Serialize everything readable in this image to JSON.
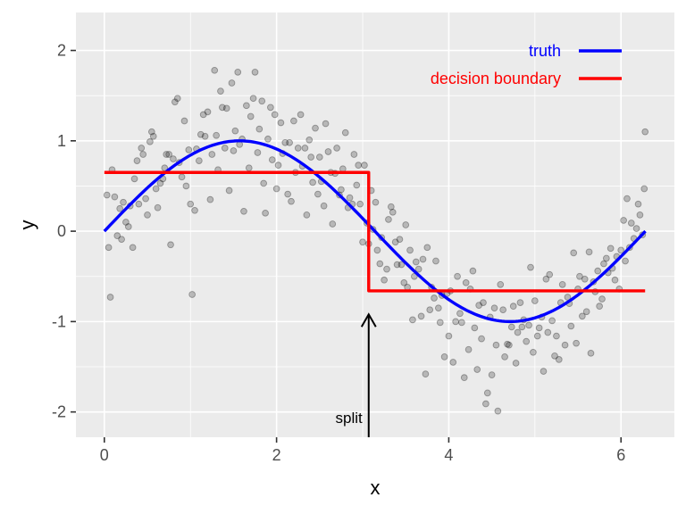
{
  "chart_data": {
    "type": "scatter",
    "xlabel": "x",
    "ylabel": "y",
    "xlim": [
      -0.33,
      6.62
    ],
    "ylim": [
      -2.28,
      2.42
    ],
    "x_ticks": [
      0,
      2,
      4,
      6
    ],
    "y_ticks": [
      -2,
      -1,
      0,
      1,
      2
    ],
    "x_tick_labels": [
      "0",
      "2",
      "4",
      "6"
    ],
    "y_tick_labels": [
      "-2",
      "-1",
      "0",
      "1",
      "2"
    ],
    "grid": true,
    "legend_position": "top-right",
    "legend": [
      {
        "label": "truth",
        "color": "#0000ff"
      },
      {
        "label": "decision boundary",
        "color": "#ff0000"
      }
    ],
    "series": [
      {
        "name": "truth",
        "type": "line",
        "color": "#0000ff",
        "function": "sin(x)",
        "domain": [
          0,
          6.2832
        ]
      },
      {
        "name": "decision boundary",
        "type": "step",
        "color": "#ff0000",
        "x": [
          0,
          3.07,
          3.07,
          6.28
        ],
        "y": [
          0.65,
          0.65,
          -0.66,
          -0.66
        ]
      }
    ],
    "points": [
      [
        0.03,
        0.4
      ],
      [
        0.05,
        -0.18
      ],
      [
        0.07,
        -0.73
      ],
      [
        0.09,
        0.68
      ],
      [
        0.12,
        0.38
      ],
      [
        0.15,
        -0.05
      ],
      [
        0.18,
        0.25
      ],
      [
        0.2,
        -0.09
      ],
      [
        0.22,
        0.32
      ],
      [
        0.25,
        0.1
      ],
      [
        0.28,
        0.05
      ],
      [
        0.3,
        0.28
      ],
      [
        0.33,
        -0.18
      ],
      [
        0.35,
        0.58
      ],
      [
        0.38,
        0.78
      ],
      [
        0.4,
        0.3
      ],
      [
        0.43,
        0.92
      ],
      [
        0.45,
        0.85
      ],
      [
        0.48,
        0.36
      ],
      [
        0.5,
        0.18
      ],
      [
        0.53,
        0.99
      ],
      [
        0.55,
        1.1
      ],
      [
        0.57,
        1.05
      ],
      [
        0.6,
        0.47
      ],
      [
        0.62,
        0.26
      ],
      [
        0.65,
        0.53
      ],
      [
        0.68,
        0.58
      ],
      [
        0.7,
        0.7
      ],
      [
        0.72,
        0.85
      ],
      [
        0.75,
        0.85
      ],
      [
        0.77,
        -0.15
      ],
      [
        0.8,
        0.8
      ],
      [
        0.82,
        1.43
      ],
      [
        0.85,
        1.47
      ],
      [
        0.87,
        0.76
      ],
      [
        0.9,
        0.6
      ],
      [
        0.93,
        1.22
      ],
      [
        0.95,
        0.5
      ],
      [
        0.98,
        0.9
      ],
      [
        1.0,
        0.3
      ],
      [
        1.02,
        -0.7
      ],
      [
        1.05,
        0.23
      ],
      [
        1.07,
        0.91
      ],
      [
        1.1,
        0.78
      ],
      [
        1.12,
        1.07
      ],
      [
        1.15,
        1.29
      ],
      [
        1.17,
        1.05
      ],
      [
        1.2,
        1.32
      ],
      [
        1.23,
        0.35
      ],
      [
        1.25,
        0.85
      ],
      [
        1.28,
        1.78
      ],
      [
        1.3,
        1.06
      ],
      [
        1.32,
        0.68
      ],
      [
        1.35,
        1.55
      ],
      [
        1.37,
        1.37
      ],
      [
        1.4,
        0.92
      ],
      [
        1.42,
        1.36
      ],
      [
        1.45,
        0.45
      ],
      [
        1.48,
        1.64
      ],
      [
        1.5,
        0.89
      ],
      [
        1.52,
        1.11
      ],
      [
        1.55,
        1.76
      ],
      [
        1.57,
        0.96
      ],
      [
        1.6,
        1.02
      ],
      [
        1.62,
        0.22
      ],
      [
        1.65,
        1.39
      ],
      [
        1.68,
        0.7
      ],
      [
        1.7,
        1.27
      ],
      [
        1.73,
        1.47
      ],
      [
        1.75,
        1.76
      ],
      [
        1.78,
        0.87
      ],
      [
        1.8,
        1.13
      ],
      [
        1.83,
        1.44
      ],
      [
        1.85,
        0.53
      ],
      [
        1.87,
        0.2
      ],
      [
        1.9,
        1.02
      ],
      [
        1.93,
        1.37
      ],
      [
        1.95,
        0.79
      ],
      [
        1.98,
        1.29
      ],
      [
        2.0,
        0.47
      ],
      [
        2.02,
        0.73
      ],
      [
        2.05,
        1.2
      ],
      [
        2.07,
        0.86
      ],
      [
        2.1,
        0.98
      ],
      [
        2.13,
        0.41
      ],
      [
        2.15,
        0.98
      ],
      [
        2.17,
        0.33
      ],
      [
        2.2,
        1.22
      ],
      [
        2.22,
        0.65
      ],
      [
        2.25,
        0.92
      ],
      [
        2.28,
        1.29
      ],
      [
        2.3,
        0.72
      ],
      [
        2.33,
        0.92
      ],
      [
        2.35,
        0.18
      ],
      [
        2.38,
        1.01
      ],
      [
        2.4,
        0.82
      ],
      [
        2.42,
        0.54
      ],
      [
        2.45,
        1.14
      ],
      [
        2.48,
        0.41
      ],
      [
        2.5,
        0.82
      ],
      [
        2.52,
        0.55
      ],
      [
        2.55,
        0.28
      ],
      [
        2.57,
        1.19
      ],
      [
        2.6,
        0.88
      ],
      [
        2.63,
        0.65
      ],
      [
        2.65,
        0.08
      ],
      [
        2.68,
        0.64
      ],
      [
        2.7,
        0.92
      ],
      [
        2.73,
        0.4
      ],
      [
        2.75,
        0.46
      ],
      [
        2.77,
        0.69
      ],
      [
        2.8,
        1.09
      ],
      [
        2.83,
        0.26
      ],
      [
        2.85,
        0.37
      ],
      [
        2.88,
        0.3
      ],
      [
        2.9,
        0.85
      ],
      [
        2.93,
        0.51
      ],
      [
        2.95,
        0.73
      ],
      [
        2.97,
        0.3
      ],
      [
        3.0,
        -0.12
      ],
      [
        3.02,
        0.73
      ],
      [
        3.05,
        0.09
      ],
      [
        3.07,
        -0.14
      ],
      [
        3.1,
        0.45
      ],
      [
        3.12,
        0.02
      ],
      [
        3.15,
        0.32
      ],
      [
        3.17,
        -0.21
      ],
      [
        3.2,
        -0.36
      ],
      [
        3.22,
        -0.07
      ],
      [
        3.25,
        -0.54
      ],
      [
        3.28,
        -0.42
      ],
      [
        3.3,
        0.13
      ],
      [
        3.33,
        0.27
      ],
      [
        3.35,
        0.21
      ],
      [
        3.38,
        -0.12
      ],
      [
        3.4,
        -0.37
      ],
      [
        3.43,
        -0.09
      ],
      [
        3.45,
        -0.37
      ],
      [
        3.48,
        -0.57
      ],
      [
        3.5,
        0.07
      ],
      [
        3.52,
        -0.62
      ],
      [
        3.55,
        -0.21
      ],
      [
        3.58,
        -0.98
      ],
      [
        3.6,
        -0.5
      ],
      [
        3.62,
        -0.34
      ],
      [
        3.65,
        -0.42
      ],
      [
        3.68,
        -0.94
      ],
      [
        3.7,
        -0.31
      ],
      [
        3.73,
        -1.58
      ],
      [
        3.75,
        -0.18
      ],
      [
        3.78,
        -0.87
      ],
      [
        3.8,
        -0.62
      ],
      [
        3.83,
        -0.74
      ],
      [
        3.85,
        -0.33
      ],
      [
        3.88,
        -0.85
      ],
      [
        3.9,
        -1.01
      ],
      [
        3.92,
        -0.71
      ],
      [
        3.95,
        -1.39
      ],
      [
        3.98,
        -0.69
      ],
      [
        4.0,
        -1.16
      ],
      [
        4.02,
        -0.66
      ],
      [
        4.05,
        -1.45
      ],
      [
        4.08,
        -1.0
      ],
      [
        4.1,
        -0.5
      ],
      [
        4.13,
        -0.91
      ],
      [
        4.15,
        -1.01
      ],
      [
        4.18,
        -1.62
      ],
      [
        4.2,
        -0.57
      ],
      [
        4.23,
        -1.31
      ],
      [
        4.25,
        -0.64
      ],
      [
        4.28,
        -0.44
      ],
      [
        4.3,
        -1.07
      ],
      [
        4.33,
        -1.53
      ],
      [
        4.35,
        -0.82
      ],
      [
        4.38,
        -1.19
      ],
      [
        4.4,
        -0.79
      ],
      [
        4.43,
        -1.91
      ],
      [
        4.45,
        -1.79
      ],
      [
        4.48,
        -0.95
      ],
      [
        4.5,
        -1.59
      ],
      [
        4.53,
        -0.85
      ],
      [
        4.55,
        -1.26
      ],
      [
        4.57,
        -1.99
      ],
      [
        4.6,
        -0.59
      ],
      [
        4.63,
        -0.87
      ],
      [
        4.65,
        -1.39
      ],
      [
        4.68,
        -1.25
      ],
      [
        4.7,
        -1.26
      ],
      [
        4.73,
        -1.06
      ],
      [
        4.75,
        -0.83
      ],
      [
        4.78,
        -1.46
      ],
      [
        4.8,
        -1.12
      ],
      [
        4.83,
        -0.79
      ],
      [
        4.85,
        -1.06
      ],
      [
        4.87,
        -0.98
      ],
      [
        4.9,
        -1.22
      ],
      [
        4.93,
        -1.04
      ],
      [
        4.95,
        -0.4
      ],
      [
        4.98,
        -1.34
      ],
      [
        5.0,
        -0.77
      ],
      [
        5.03,
        -1.16
      ],
      [
        5.05,
        -1.07
      ],
      [
        5.08,
        -0.95
      ],
      [
        5.1,
        -1.55
      ],
      [
        5.13,
        -0.53
      ],
      [
        5.15,
        -1.12
      ],
      [
        5.17,
        -0.48
      ],
      [
        5.2,
        -0.99
      ],
      [
        5.23,
        -1.38
      ],
      [
        5.25,
        -1.16
      ],
      [
        5.28,
        -1.42
      ],
      [
        5.3,
        -0.79
      ],
      [
        5.32,
        -0.59
      ],
      [
        5.35,
        -1.26
      ],
      [
        5.38,
        -0.73
      ],
      [
        5.4,
        -0.8
      ],
      [
        5.42,
        -1.05
      ],
      [
        5.45,
        -0.24
      ],
      [
        5.48,
        -1.24
      ],
      [
        5.5,
        -0.64
      ],
      [
        5.52,
        -0.5
      ],
      [
        5.55,
        -0.94
      ],
      [
        5.58,
        -0.53
      ],
      [
        5.6,
        -0.89
      ],
      [
        5.63,
        -0.23
      ],
      [
        5.65,
        -1.35
      ],
      [
        5.68,
        -0.56
      ],
      [
        5.7,
        -0.67
      ],
      [
        5.73,
        -0.44
      ],
      [
        5.75,
        -0.83
      ],
      [
        5.78,
        -0.75
      ],
      [
        5.8,
        -0.36
      ],
      [
        5.83,
        -0.3
      ],
      [
        5.85,
        -0.46
      ],
      [
        5.88,
        -0.19
      ],
      [
        5.9,
        -0.41
      ],
      [
        5.93,
        -0.54
      ],
      [
        5.95,
        -0.28
      ],
      [
        5.98,
        -0.64
      ],
      [
        6.0,
        -0.21
      ],
      [
        6.03,
        0.12
      ],
      [
        6.05,
        -0.33
      ],
      [
        6.07,
        0.36
      ],
      [
        6.1,
        -0.18
      ],
      [
        6.12,
        0.09
      ],
      [
        6.15,
        -0.08
      ],
      [
        6.18,
        0.03
      ],
      [
        6.2,
        0.3
      ],
      [
        6.22,
        0.18
      ],
      [
        6.25,
        -0.04
      ],
      [
        6.27,
        0.47
      ],
      [
        6.28,
        1.1
      ]
    ],
    "point_color": "#000000",
    "annotations": [
      {
        "text": "split",
        "x": 3.07,
        "arrow_from_y": -2.28,
        "arrow_to_y": -0.92
      }
    ]
  }
}
